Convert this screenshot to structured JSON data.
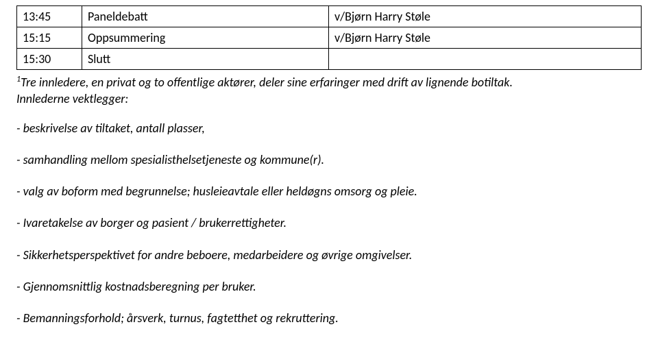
{
  "schedule": {
    "rows": [
      {
        "time": "13:45",
        "title": "Paneldebatt",
        "speaker": "v/Bjørn Harry Støle"
      },
      {
        "time": "15:15",
        "title": "Oppsummering",
        "speaker": "v/Bjørn Harry Støle"
      },
      {
        "time": "15:30",
        "title": "Slutt",
        "speaker": ""
      }
    ]
  },
  "footnote": {
    "marker": "1",
    "line1": "Tre innledere, en privat og to offentlige aktører, deler sine erfaringer med drift av lignende botiltak.",
    "line2": "Innlederne vektlegger:"
  },
  "bullets": {
    "b1": "-  beskrivelse av tiltaket, antall plasser,",
    "b2": "- samhandling mellom spesialisthelsetjeneste og kommune(r).",
    "b3": "-  valg av boform med begrunnelse; husleieavtale eller heldøgns omsorg og pleie.",
    "b4": "- Ivaretakelse av borger og pasient / brukerrettigheter.",
    "b5": "-  Sikkerhetsperspektivet for andre beboere,  medarbeidere og øvrige omgivelser.",
    "b6": "- Gjennomsnittlig kostnadsberegning  per bruker.",
    "b7": "- Bemanningsforhold; årsverk, turnus, fagtetthet og rekruttering."
  }
}
